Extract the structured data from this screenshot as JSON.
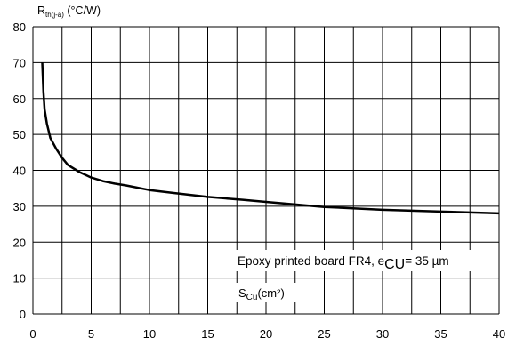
{
  "chart_data": {
    "type": "line",
    "ylabel_main": "R",
    "ylabel_sub": "th(j-a)",
    "ylabel_unit": " (°C/W)",
    "xlabel_main": "S",
    "xlabel_sub": "Cu",
    "xlabel_unit": "(cm²)",
    "annotation_main": "Epoxy printed board FR4, e",
    "annotation_sub": "CU",
    "annotation_rest": "= 35 µm",
    "xlim": [
      0,
      40
    ],
    "ylim": [
      0,
      80
    ],
    "x_ticks": [
      "0",
      "5",
      "10",
      "15",
      "20",
      "25",
      "30",
      "35",
      "40"
    ],
    "y_ticks": [
      "0",
      "10",
      "20",
      "30",
      "40",
      "50",
      "60",
      "70",
      "80"
    ],
    "grid": true,
    "series": [
      {
        "x": [
          0.8,
          0.9,
          1.0,
          1.2,
          1.5,
          2.0,
          2.5,
          3.0,
          4.0,
          5.0,
          6.0,
          7.0,
          8.0,
          10.0,
          12.0,
          15.0,
          18.0,
          20.0,
          25.0,
          30.0,
          35.0,
          40.0
        ],
        "values": [
          70,
          62,
          57,
          53,
          49,
          46,
          43.5,
          41.5,
          39.5,
          38,
          37,
          36.3,
          35.8,
          34.5,
          33.7,
          32.6,
          31.8,
          31.2,
          29.8,
          29.0,
          28.5,
          28.0
        ]
      }
    ]
  }
}
